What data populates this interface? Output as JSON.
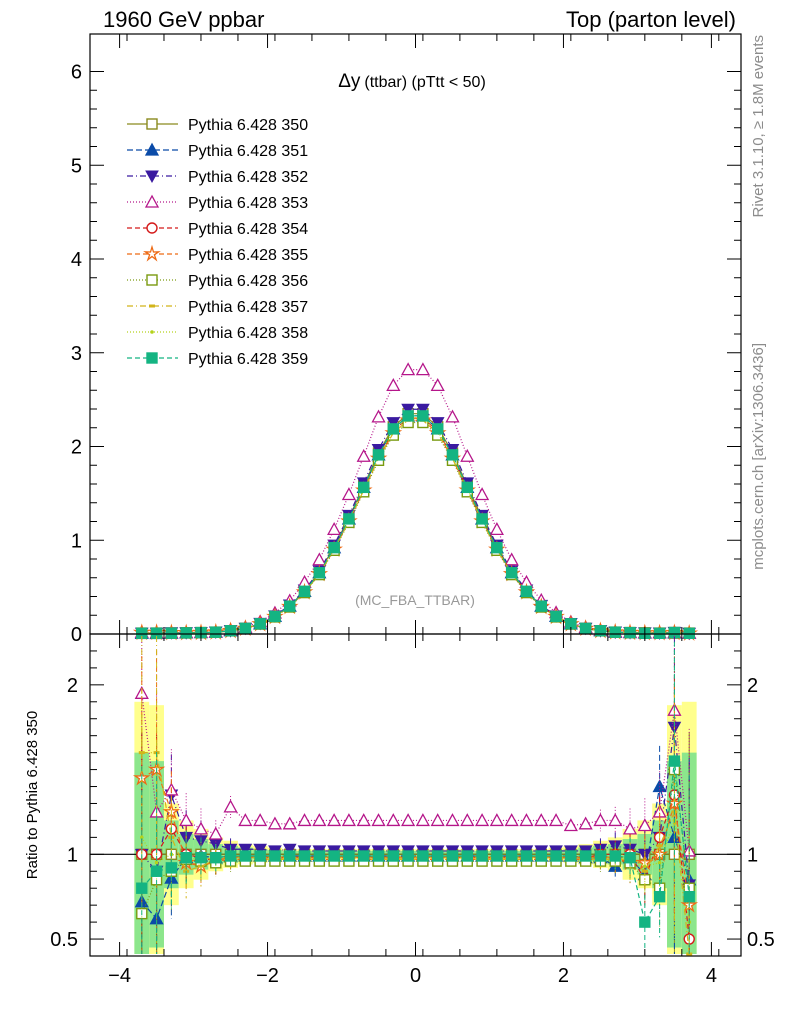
{
  "header": {
    "left": "1960 GeV ppbar",
    "right": "Top (parton level)"
  },
  "side": {
    "rivet": "Rivet 3.1.10, ≥ 1.8M events",
    "mcplots": "mcplots.cern.ch [arXiv:1306.3436]"
  },
  "chart_data": {
    "type": "line",
    "title": "Δy (ttbar) (pTtt < 50)",
    "title_main": "Δy",
    "title_sub": "(ttbar) (pTtt < 50)",
    "watermark": "(MC_FBA_TTBAR)",
    "ratio_ylabel": "Ratio to Pythia 6.428 350",
    "x_range": [
      -4.4,
      4.4
    ],
    "y_range": [
      0,
      6.4
    ],
    "ratio_range": [
      0.4,
      2.3
    ],
    "x_ticks": [
      "−4",
      "−2",
      "0",
      "2",
      "4"
    ],
    "x_tick_values": [
      -4,
      -2,
      0,
      2,
      4
    ],
    "y_ticks": [
      "0",
      "1",
      "2",
      "3",
      "4",
      "5",
      "6"
    ],
    "y_tick_values": [
      0,
      1,
      2,
      3,
      4,
      5,
      6
    ],
    "ratio_ticks": [
      "0.5",
      "1",
      "2"
    ],
    "ratio_tick_values": [
      0.5,
      1,
      2
    ],
    "x": [
      -3.7,
      -3.5,
      -3.3,
      -3.1,
      -2.9,
      -2.7,
      -2.5,
      -2.3,
      -2.1,
      -1.9,
      -1.7,
      -1.5,
      -1.3,
      -1.1,
      -0.9,
      -0.7,
      -0.5,
      -0.3,
      -0.1,
      0.1,
      0.3,
      0.5,
      0.7,
      0.9,
      1.1,
      1.3,
      1.5,
      1.7,
      1.9,
      2.1,
      2.3,
      2.5,
      2.7,
      2.9,
      3.1,
      3.3,
      3.5,
      3.7
    ],
    "reference": [
      0.01,
      0.01,
      0.01,
      0.012,
      0.015,
      0.02,
      0.035,
      0.06,
      0.11,
      0.19,
      0.3,
      0.46,
      0.66,
      0.93,
      1.24,
      1.58,
      1.93,
      2.21,
      2.35,
      2.35,
      2.21,
      1.93,
      1.58,
      1.24,
      0.93,
      0.66,
      0.46,
      0.3,
      0.19,
      0.11,
      0.06,
      0.035,
      0.02,
      0.015,
      0.012,
      0.01,
      0.01,
      0.01
    ],
    "band_outer": [
      0.9,
      0.88,
      0.3,
      0.2,
      0.15,
      0.1,
      0.08,
      0.06,
      0.05,
      0.04,
      0.03,
      0.03,
      0.03,
      0.03,
      0.03,
      0.03,
      0.03,
      0.03,
      0.03,
      0.03,
      0.03,
      0.03,
      0.03,
      0.03,
      0.03,
      0.03,
      0.03,
      0.03,
      0.04,
      0.05,
      0.06,
      0.08,
      0.1,
      0.15,
      0.2,
      0.3,
      0.88,
      0.9
    ],
    "band_inner": [
      0.6,
      0.55,
      0.2,
      0.12,
      0.09,
      0.06,
      0.05,
      0.04,
      0.03,
      0.025,
      0.02,
      0.02,
      0.02,
      0.02,
      0.02,
      0.02,
      0.02,
      0.02,
      0.02,
      0.02,
      0.02,
      0.02,
      0.02,
      0.02,
      0.02,
      0.02,
      0.02,
      0.02,
      0.025,
      0.03,
      0.04,
      0.05,
      0.06,
      0.09,
      0.12,
      0.2,
      0.55,
      0.6
    ],
    "series": [
      {
        "name": "Pythia 6.428 350",
        "color": "#8a8a1e",
        "marker": "square-open",
        "dash": "",
        "ratio": [
          1,
          1,
          1,
          1,
          1,
          1,
          1,
          1,
          1,
          1,
          1,
          1,
          1,
          1,
          1,
          1,
          1,
          1,
          1,
          1,
          1,
          1,
          1,
          1,
          1,
          1,
          1,
          1,
          1,
          1,
          1,
          1,
          1,
          1,
          1,
          1,
          1,
          1
        ]
      },
      {
        "name": "Pythia 6.428 351",
        "color": "#0a4ba8",
        "marker": "triangle-up",
        "dash": "6,3",
        "ratio": [
          0.72,
          0.62,
          0.86,
          0.98,
          0.99,
          0.98,
          0.99,
          0.99,
          0.99,
          0.99,
          0.99,
          0.99,
          0.99,
          0.99,
          0.99,
          0.99,
          0.99,
          0.99,
          0.99,
          0.99,
          0.99,
          0.99,
          0.99,
          0.99,
          0.99,
          0.99,
          0.99,
          0.99,
          0.99,
          0.99,
          0.98,
          0.98,
          0.93,
          0.98,
          0.88,
          1.4,
          1.1,
          0.85
        ]
      },
      {
        "name": "Pythia 6.428 352",
        "color": "#3a1aa0",
        "marker": "triangle-down",
        "dash": "6,3,1,3",
        "ratio": [
          1.0,
          0.9,
          1.35,
          1.1,
          1.08,
          1.06,
          1.03,
          1.03,
          1.03,
          1.02,
          1.03,
          1.02,
          1.02,
          1.02,
          1.02,
          1.02,
          1.02,
          1.02,
          1.02,
          1.02,
          1.02,
          1.02,
          1.02,
          1.02,
          1.02,
          1.02,
          1.02,
          1.02,
          1.02,
          1.02,
          1.02,
          1.03,
          1.05,
          1.03,
          1.0,
          1.1,
          1.75,
          0.82
        ]
      },
      {
        "name": "Pythia 6.428 353",
        "color": "#b5168a",
        "marker": "triangle-open",
        "dash": "1,2",
        "ratio": [
          1.95,
          1.25,
          1.38,
          1.2,
          1.15,
          1.12,
          1.28,
          1.2,
          1.2,
          1.18,
          1.18,
          1.2,
          1.2,
          1.2,
          1.2,
          1.2,
          1.2,
          1.2,
          1.2,
          1.2,
          1.2,
          1.2,
          1.2,
          1.2,
          1.2,
          1.2,
          1.2,
          1.2,
          1.2,
          1.17,
          1.18,
          1.2,
          1.2,
          1.15,
          1.17,
          1.25,
          1.85,
          1.02
        ]
      },
      {
        "name": "Pythia 6.428 354",
        "color": "#d41a1a",
        "marker": "circle-open",
        "dash": "5,3",
        "ratio": [
          1.0,
          1.0,
          1.15,
          1.0,
          0.98,
          0.96,
          0.98,
          0.98,
          0.98,
          0.98,
          0.98,
          0.98,
          0.98,
          0.98,
          0.98,
          0.98,
          0.98,
          0.98,
          0.98,
          0.98,
          0.98,
          0.98,
          0.98,
          0.98,
          0.98,
          0.98,
          0.98,
          0.98,
          0.98,
          0.98,
          0.98,
          1.0,
          1.0,
          1.0,
          0.85,
          1.1,
          1.35,
          0.5
        ]
      },
      {
        "name": "Pythia 6.428 355",
        "color": "#ee6a14",
        "marker": "star-open",
        "dash": "5,3",
        "ratio": [
          1.45,
          1.5,
          1.25,
          0.95,
          0.93,
          0.96,
          0.97,
          0.97,
          0.97,
          0.97,
          0.97,
          0.97,
          0.97,
          0.97,
          0.97,
          0.97,
          0.97,
          0.97,
          0.97,
          0.97,
          0.97,
          0.97,
          0.97,
          0.97,
          0.97,
          0.97,
          0.97,
          0.97,
          0.97,
          0.97,
          0.97,
          0.97,
          0.97,
          0.95,
          0.95,
          1.0,
          1.3,
          0.7
        ]
      },
      {
        "name": "Pythia 6.428 356",
        "color": "#7a9a10",
        "marker": "square-open",
        "dash": "1,2",
        "ratio": [
          0.65,
          0.85,
          0.9,
          0.97,
          0.96,
          0.95,
          0.96,
          0.96,
          0.96,
          0.96,
          0.96,
          0.96,
          0.96,
          0.96,
          0.96,
          0.96,
          0.96,
          0.96,
          0.96,
          0.96,
          0.96,
          0.96,
          0.96,
          0.96,
          0.96,
          0.96,
          0.96,
          0.96,
          0.96,
          0.96,
          0.96,
          0.96,
          0.96,
          0.95,
          0.85,
          0.8,
          1.5,
          0.8
        ]
      },
      {
        "name": "Pythia 6.428 357",
        "color": "#d2b41a",
        "marker": "dash-dot",
        "dash": "6,3,1,3",
        "ratio": [
          1.6,
          1.6,
          1.1,
          0.9,
          0.93,
          0.97,
          0.97,
          0.97,
          0.97,
          0.97,
          0.97,
          0.97,
          0.97,
          0.97,
          0.97,
          0.97,
          0.97,
          0.97,
          0.97,
          0.97,
          0.97,
          0.97,
          0.97,
          0.97,
          0.97,
          0.97,
          0.97,
          0.97,
          0.97,
          0.97,
          0.97,
          0.97,
          0.97,
          0.97,
          0.9,
          1.05,
          1.25,
          0.4
        ]
      },
      {
        "name": "Pythia 6.428 358",
        "color": "#b4d21a",
        "marker": "dot",
        "dash": "1,2",
        "ratio": [
          1.1,
          0.95,
          1.0,
          0.98,
          0.97,
          0.98,
          0.98,
          0.98,
          0.98,
          0.98,
          0.98,
          0.98,
          0.98,
          0.98,
          0.98,
          0.98,
          0.98,
          0.98,
          0.98,
          0.98,
          0.98,
          0.98,
          0.98,
          0.98,
          0.98,
          0.98,
          0.98,
          0.98,
          0.98,
          0.98,
          0.98,
          0.98,
          0.98,
          0.98,
          0.93,
          0.95,
          1.2,
          0.6
        ]
      },
      {
        "name": "Pythia 6.428 359",
        "color": "#14b482",
        "marker": "square-filled",
        "dash": "5,3",
        "ratio": [
          0.8,
          0.9,
          0.92,
          0.98,
          0.98,
          0.98,
          0.99,
          0.99,
          0.99,
          0.99,
          0.99,
          0.99,
          0.99,
          0.99,
          0.99,
          0.99,
          0.99,
          0.99,
          0.99,
          0.99,
          0.99,
          0.99,
          0.99,
          0.99,
          0.99,
          0.99,
          0.99,
          0.99,
          0.99,
          0.99,
          0.99,
          0.99,
          0.99,
          0.98,
          0.6,
          0.75,
          1.55,
          0.75
        ]
      }
    ]
  }
}
